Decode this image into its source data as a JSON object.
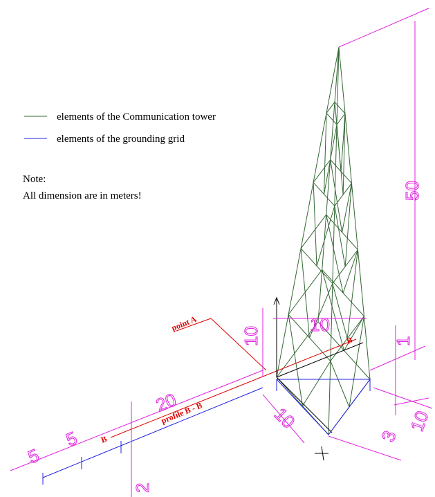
{
  "legend": [
    {
      "label": "elements of the Communication tower"
    },
    {
      "label": "elements of the grounding grid"
    }
  ],
  "note": {
    "title": "Note:",
    "text": "All dimension are in meters!"
  },
  "labels": {
    "point": "point A",
    "profile": "profile B - B",
    "section_marks": [
      "B",
      "B"
    ]
  },
  "dimensions": [
    "50",
    "10",
    "10",
    "1",
    "20",
    "5",
    "5",
    "2",
    "10",
    "10",
    "3"
  ]
}
